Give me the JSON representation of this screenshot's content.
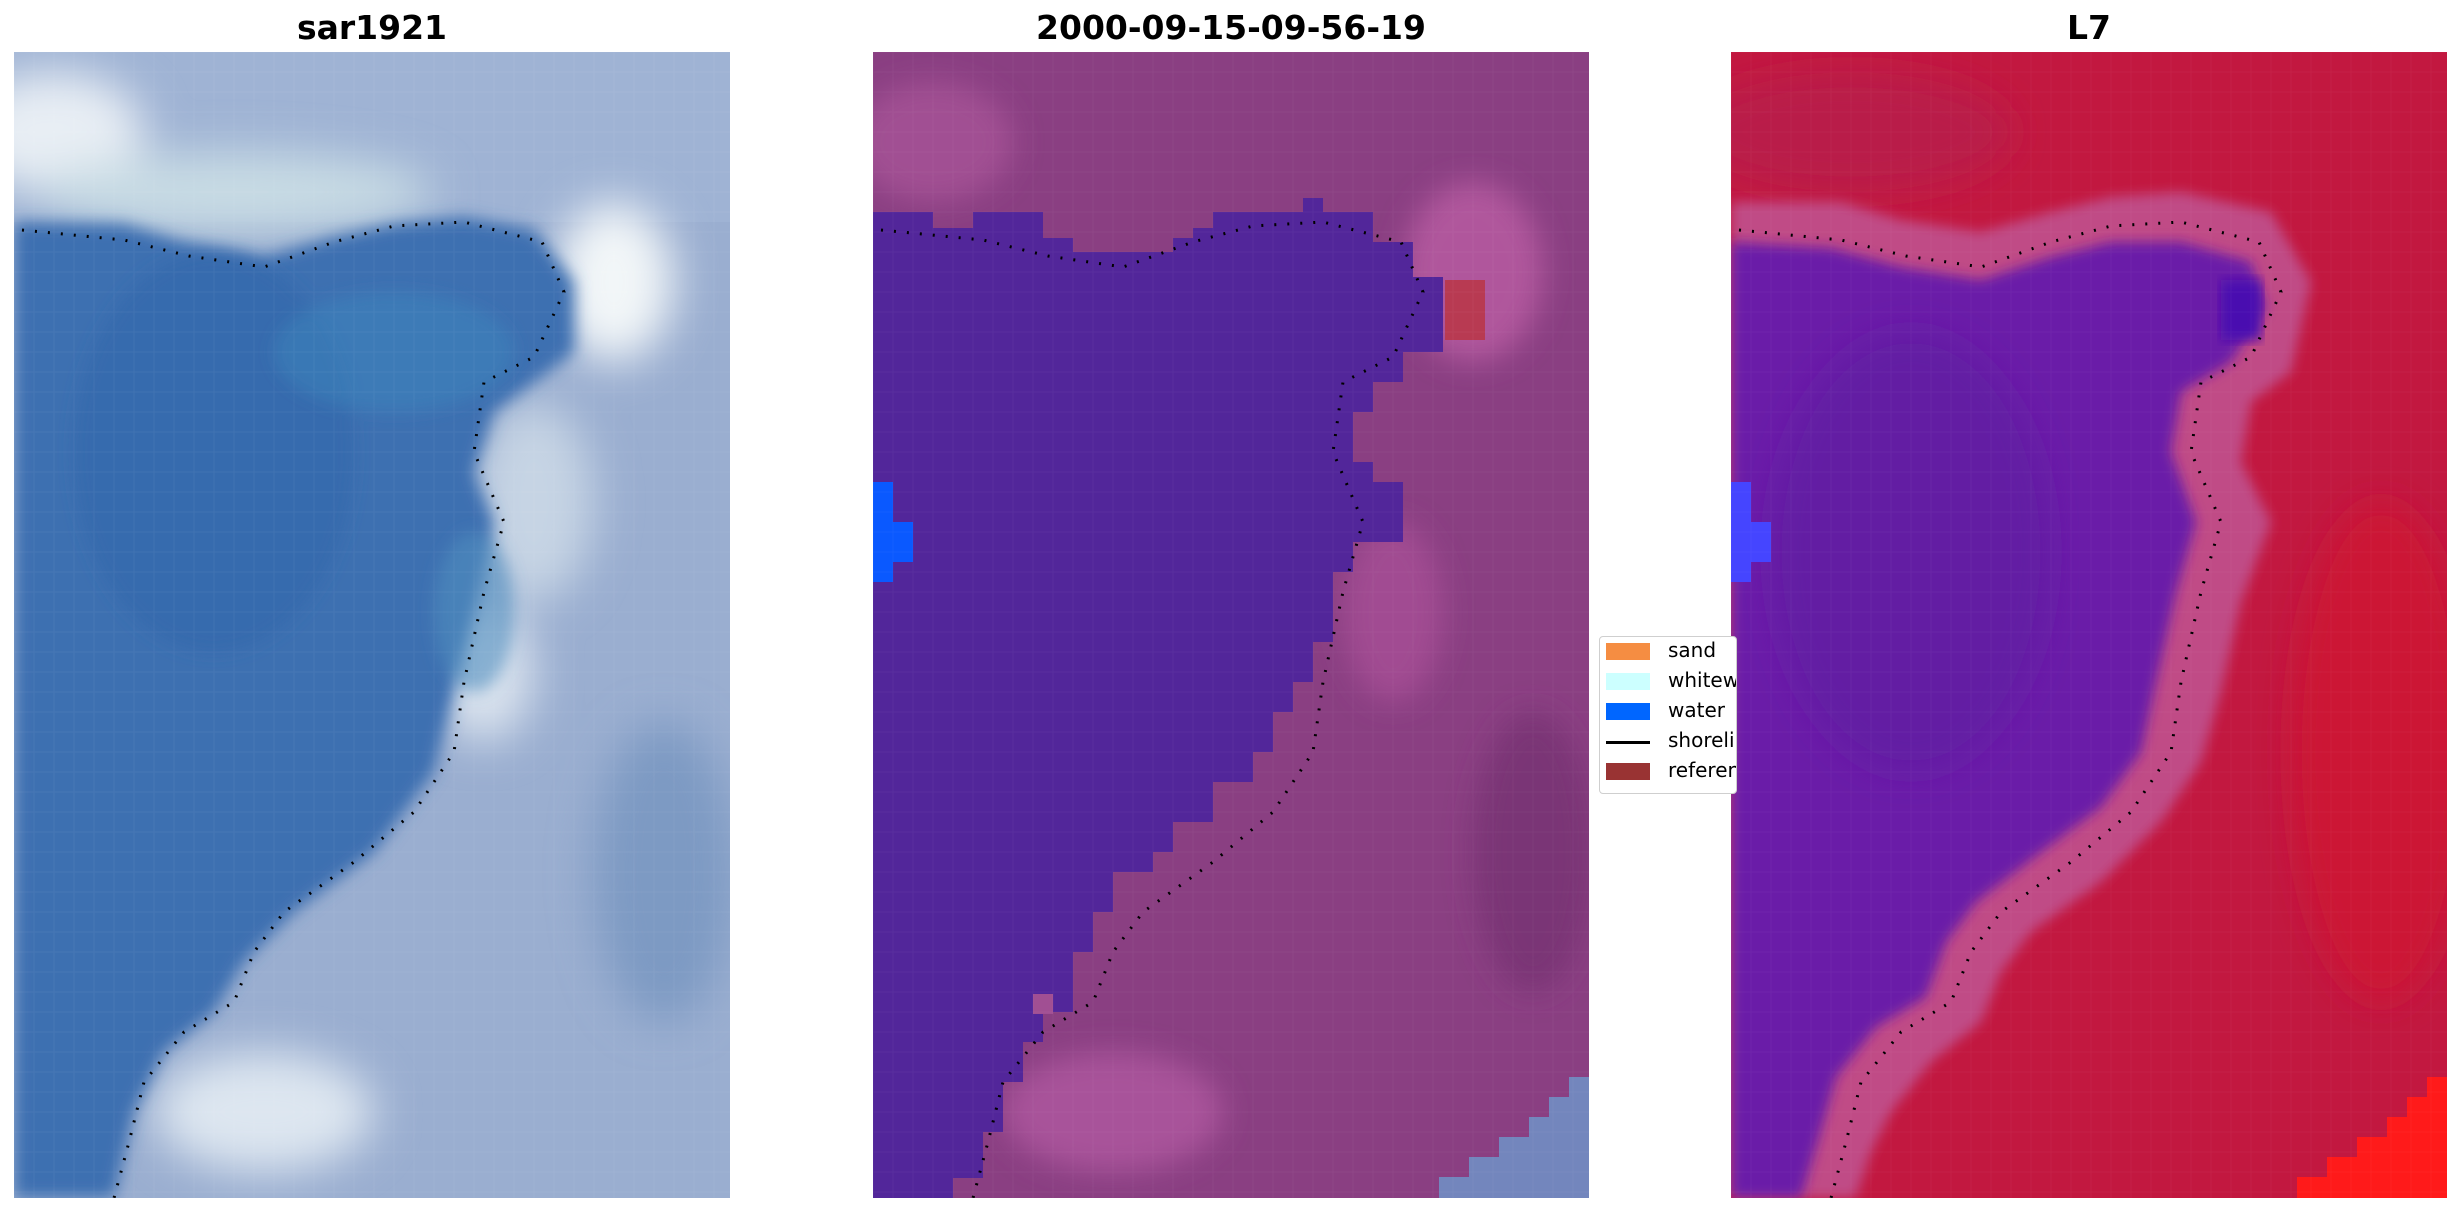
{
  "panels": [
    {
      "title": "sar1921"
    },
    {
      "title": "2000-09-15-09-56-19"
    },
    {
      "title": "L7"
    }
  ],
  "legend": {
    "items": [
      {
        "label": "sand",
        "color": "#f58d42",
        "type": "patch"
      },
      {
        "label": "whitewater",
        "color": "#ccffff",
        "type": "patch"
      },
      {
        "label": "water",
        "color": "#0066ff",
        "type": "patch"
      },
      {
        "label": "shoreline",
        "color": "#000000",
        "type": "line"
      },
      {
        "label": "reference",
        "color": "#993333",
        "type": "patch"
      }
    ]
  },
  "colors": {
    "rgb_water": "#3a6fb0",
    "rgb_land": "#8fa3c8",
    "class_water": "#52269a",
    "class_land": "#8e4584",
    "mndwi_water": "#6a1fa8",
    "mndwi_land": "#c21840",
    "blob_blue": "#0a59ff",
    "reference_patch": "#b83a52"
  }
}
